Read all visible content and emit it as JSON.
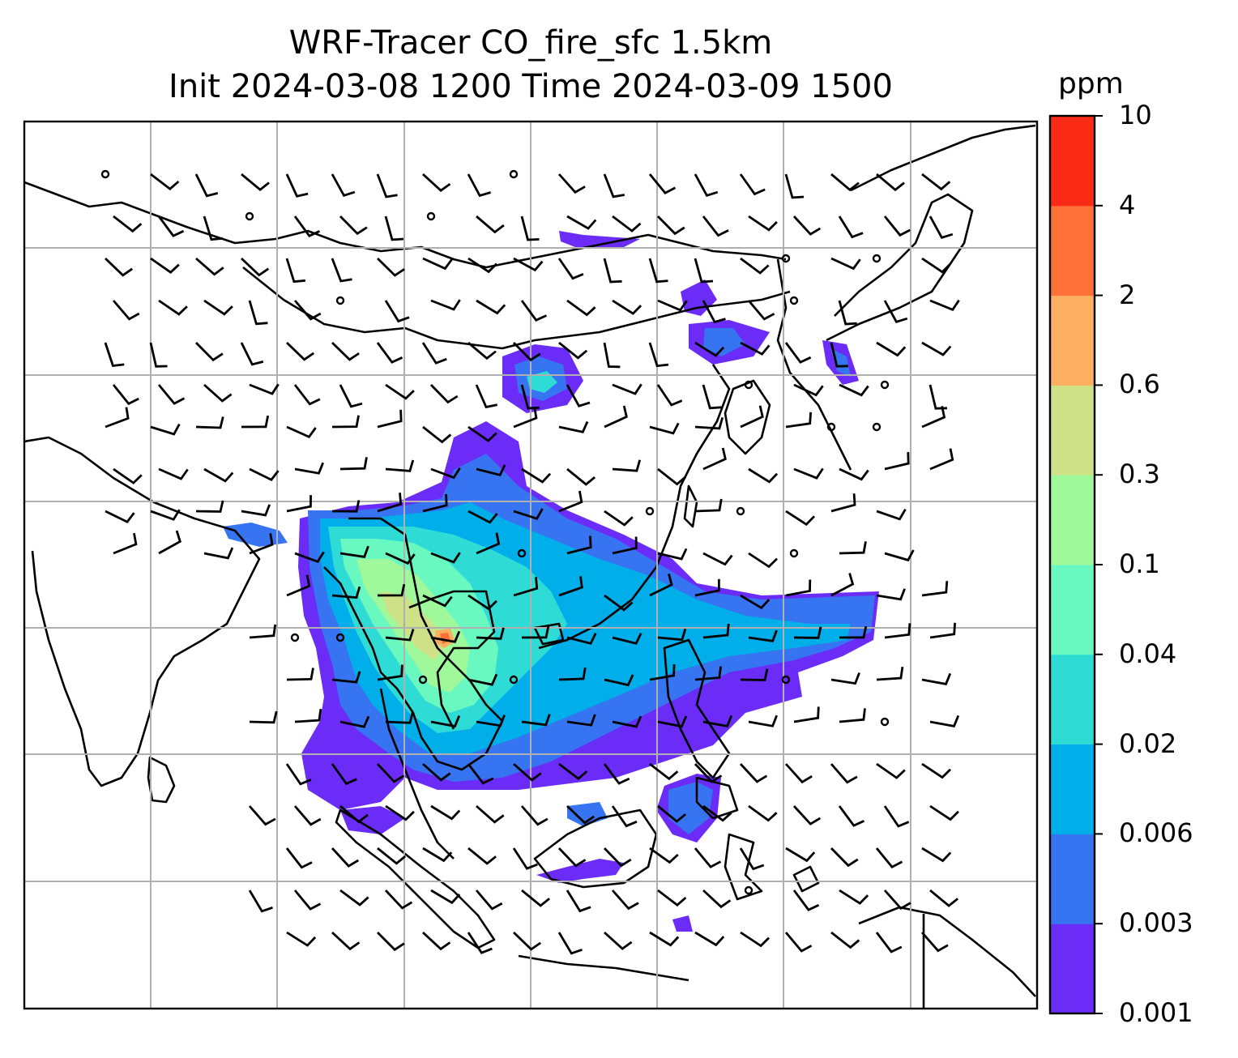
{
  "title": {
    "line1": "WRF-Tracer CO_fire_sfc 1.5km",
    "line2": "Init 2024-03-08 1200 Time 2024-03-09 1500"
  },
  "colorbar": {
    "unit": "ppm",
    "levels": [
      "0.001",
      "0.003",
      "0.006",
      "0.02",
      "0.04",
      "0.1",
      "0.3",
      "0.6",
      "2",
      "4",
      "10"
    ],
    "colors": [
      "#6a2cf6",
      "#3674f1",
      "#00aee9",
      "#2fdcd5",
      "#69f8c0",
      "#9ff99a",
      "#cfe186",
      "#fdaf61",
      "#fd7138",
      "#fa2b16"
    ]
  },
  "map": {
    "land_outline_color": "#000000",
    "gridline_color": "#b0b0b0",
    "field": "CO_fire_sfc",
    "wind": "wind barbs (black)"
  }
}
